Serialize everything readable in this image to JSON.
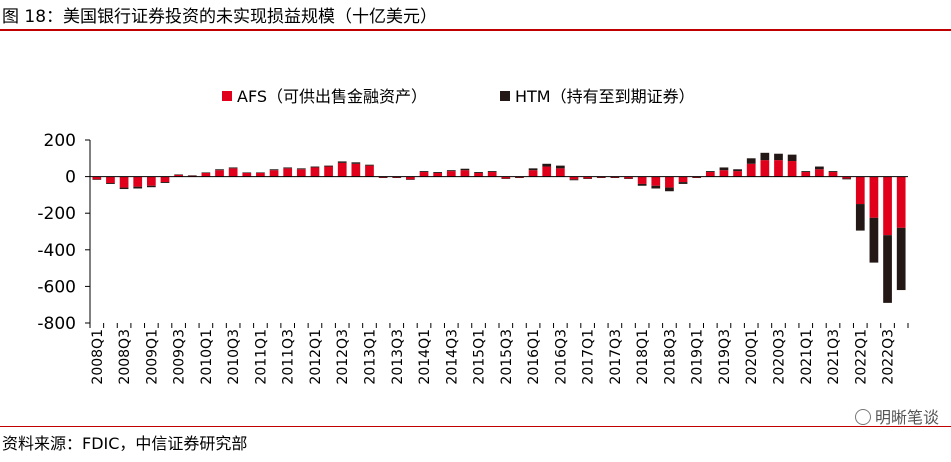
{
  "title": "图 18：美国银行证券投资的未实现损益规模（十亿美元）",
  "source": "资料来源：FDIC，中信证券研究部",
  "watermark": "明晰笔谈",
  "colors": {
    "afs": "#e0001b",
    "htm": "#231815",
    "accent": "#c00000"
  },
  "chart_data": {
    "type": "bar",
    "stacked": true,
    "title": "",
    "xlabel": "",
    "ylabel": "",
    "ylim": [
      -800,
      200
    ],
    "yticks": [
      200,
      0,
      -200,
      -400,
      -600,
      -800
    ],
    "legend_position": "top-center",
    "grid": false,
    "categories": [
      "2008Q1",
      "2008Q2",
      "2008Q3",
      "2008Q4",
      "2009Q1",
      "2009Q2",
      "2009Q3",
      "2009Q4",
      "2010Q1",
      "2010Q2",
      "2010Q3",
      "2010Q4",
      "2011Q1",
      "2011Q2",
      "2011Q3",
      "2011Q4",
      "2012Q1",
      "2012Q2",
      "2012Q3",
      "2012Q4",
      "2013Q1",
      "2013Q2",
      "2013Q3",
      "2013Q4",
      "2014Q1",
      "2014Q2",
      "2014Q3",
      "2014Q4",
      "2015Q1",
      "2015Q2",
      "2015Q3",
      "2015Q4",
      "2016Q1",
      "2016Q2",
      "2016Q3",
      "2016Q4",
      "2017Q1",
      "2017Q2",
      "2017Q3",
      "2017Q4",
      "2018Q1",
      "2018Q2",
      "2018Q3",
      "2018Q4",
      "2019Q1",
      "2019Q2",
      "2019Q3",
      "2019Q4",
      "2020Q1",
      "2020Q2",
      "2020Q3",
      "2020Q4",
      "2021Q1",
      "2021Q2",
      "2021Q3",
      "2021Q4",
      "2022Q1",
      "2022Q2",
      "2022Q3",
      "2022Q4"
    ],
    "xtick_labels": [
      "2008Q1",
      "2008Q3",
      "2009Q1",
      "2009Q3",
      "2010Q1",
      "2010Q3",
      "2011Q1",
      "2011Q3",
      "2012Q1",
      "2012Q3",
      "2013Q1",
      "2013Q3",
      "2014Q1",
      "2014Q3",
      "2015Q1",
      "2015Q3",
      "2016Q1",
      "2016Q3",
      "2017Q1",
      "2017Q3",
      "2018Q1",
      "2018Q3",
      "2019Q1",
      "2019Q3",
      "2020Q1",
      "2020Q3",
      "2021Q1",
      "2021Q3",
      "2022Q1",
      "2022Q3"
    ],
    "series": [
      {
        "name": "AFS（可供出售金融资产）",
        "color": "#e0001b",
        "values": [
          -15,
          -35,
          -60,
          -55,
          -50,
          -30,
          10,
          5,
          20,
          35,
          45,
          20,
          20,
          35,
          45,
          40,
          50,
          55,
          75,
          70,
          60,
          -5,
          -5,
          -15,
          25,
          20,
          30,
          35,
          20,
          25,
          -10,
          -5,
          35,
          55,
          45,
          -15,
          -10,
          -5,
          -5,
          -10,
          -40,
          -50,
          -60,
          -30,
          -5,
          25,
          35,
          30,
          70,
          90,
          90,
          85,
          25,
          40,
          25,
          -10,
          -150,
          -225,
          -320,
          -280
        ]
      },
      {
        "name": "HTM（持有至到期证券）",
        "color": "#231815",
        "values": [
          -3,
          -5,
          -8,
          -10,
          -8,
          -5,
          2,
          2,
          3,
          5,
          5,
          3,
          3,
          5,
          5,
          5,
          5,
          5,
          8,
          8,
          5,
          -2,
          -2,
          -3,
          5,
          5,
          5,
          8,
          5,
          5,
          -2,
          -2,
          10,
          15,
          15,
          -5,
          -3,
          -2,
          -2,
          -3,
          -10,
          -15,
          -20,
          -10,
          -2,
          5,
          15,
          10,
          30,
          40,
          35,
          35,
          5,
          15,
          5,
          -5,
          -145,
          -245,
          -370,
          -340
        ]
      }
    ]
  }
}
